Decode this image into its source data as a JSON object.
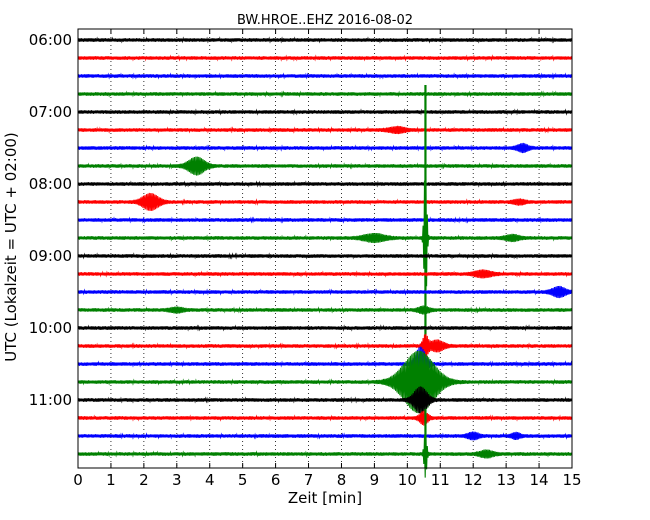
{
  "chart_data": {
    "type": "line",
    "title": "BW.HROE..EHZ 2016-08-02",
    "xlabel": "Zeit  [min]",
    "ylabel": "UTC (Lokalzeit = UTC + 02:00)",
    "xlim": [
      0,
      15
    ],
    "x_ticks": [
      "0",
      "1",
      "2",
      "3",
      "4",
      "5",
      "6",
      "7",
      "8",
      "9",
      "10",
      "11",
      "12",
      "13",
      "14",
      "15"
    ],
    "y_ticks": [
      {
        "label": "06:00",
        "trace": 0
      },
      {
        "label": "07:00",
        "trace": 4
      },
      {
        "label": "08:00",
        "trace": 8
      },
      {
        "label": "09:00",
        "trace": 12
      },
      {
        "label": "10:00",
        "trace": 16
      },
      {
        "label": "11:00",
        "trace": 20
      }
    ],
    "grid": "vertical dotted",
    "trace_minutes": 15,
    "colors": [
      "#000000",
      "#ff0000",
      "#0000ff",
      "#008000"
    ],
    "traces": [
      {
        "start": "06:00",
        "events": []
      },
      {
        "start": "06:15",
        "events": []
      },
      {
        "start": "06:30",
        "events": []
      },
      {
        "start": "06:45",
        "events": []
      },
      {
        "start": "07:00",
        "events": []
      },
      {
        "start": "07:15",
        "events": [
          {
            "t": 9.7,
            "amp": 0.25,
            "dur": 0.6
          }
        ]
      },
      {
        "start": "07:30",
        "events": [
          {
            "t": 13.5,
            "amp": 0.35,
            "dur": 0.4
          }
        ]
      },
      {
        "start": "07:45",
        "events": [
          {
            "t": 3.6,
            "amp": 0.8,
            "dur": 0.6
          }
        ]
      },
      {
        "start": "08:00",
        "events": []
      },
      {
        "start": "08:15",
        "events": [
          {
            "t": 2.2,
            "amp": 0.75,
            "dur": 0.6
          },
          {
            "t": 13.4,
            "amp": 0.2,
            "dur": 0.4
          }
        ]
      },
      {
        "start": "08:30",
        "events": []
      },
      {
        "start": "08:45",
        "events": [
          {
            "t": 9.0,
            "amp": 0.35,
            "dur": 0.8
          },
          {
            "t": 13.2,
            "amp": 0.25,
            "dur": 0.5
          },
          {
            "t": 10.55,
            "amp": 8.5,
            "dur": 0.1,
            "spike": true
          }
        ]
      },
      {
        "start": "09:00",
        "events": []
      },
      {
        "start": "09:15",
        "events": [
          {
            "t": 12.3,
            "amp": 0.3,
            "dur": 0.6
          }
        ]
      },
      {
        "start": "09:30",
        "events": [
          {
            "t": 14.6,
            "amp": 0.45,
            "dur": 0.5
          }
        ]
      },
      {
        "start": "09:45",
        "events": [
          {
            "t": 3.0,
            "amp": 0.2,
            "dur": 0.5
          },
          {
            "t": 10.5,
            "amp": 0.3,
            "dur": 0.4
          }
        ]
      },
      {
        "start": "10:00",
        "events": []
      },
      {
        "start": "10:15",
        "events": [
          {
            "t": 10.55,
            "amp": 1.0,
            "dur": 0.2
          },
          {
            "t": 10.9,
            "amp": 0.5,
            "dur": 0.5
          }
        ]
      },
      {
        "start": "10:30",
        "events": [
          {
            "t": 10.4,
            "amp": 1.6,
            "dur": 0.4
          }
        ]
      },
      {
        "start": "10:45",
        "events": [
          {
            "t": 10.35,
            "amp": 3.0,
            "dur": 1.2
          }
        ]
      },
      {
        "start": "11:00",
        "events": [
          {
            "t": 10.4,
            "amp": 1.2,
            "dur": 0.5
          }
        ]
      },
      {
        "start": "11:15",
        "events": [
          {
            "t": 10.5,
            "amp": 0.6,
            "dur": 0.3
          }
        ]
      },
      {
        "start": "11:30",
        "events": [
          {
            "t": 12.0,
            "amp": 0.3,
            "dur": 0.4
          },
          {
            "t": 13.3,
            "amp": 0.25,
            "dur": 0.3
          }
        ]
      },
      {
        "start": "11:45",
        "events": [
          {
            "t": 12.4,
            "amp": 0.3,
            "dur": 0.5
          },
          {
            "t": 10.55,
            "amp": 2.5,
            "dur": 0.1,
            "spike": true
          }
        ]
      }
    ]
  }
}
